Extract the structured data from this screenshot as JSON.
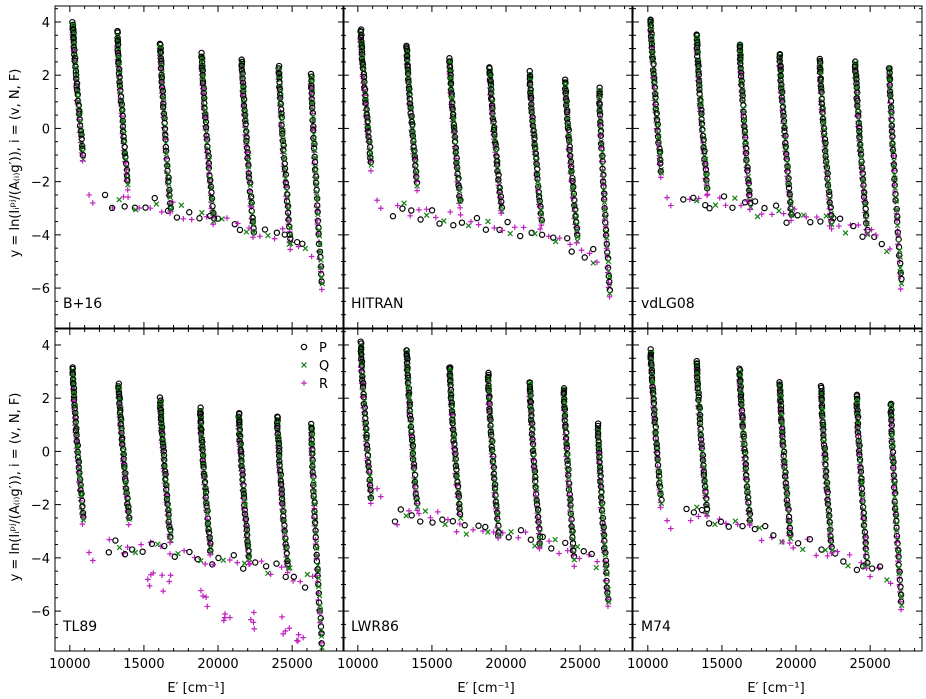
{
  "chart_data": {
    "type": "scatter",
    "layout": "2x3 grid, shared axes",
    "xlabel": "E′ [cm⁻¹]",
    "ylabel": "y = ln(Iᵢᵖʲ/(A₍ᵢ₎g′)),  i = (v, N, F)",
    "xlim": [
      9000,
      28500
    ],
    "ylim": [
      -7.5,
      4.6
    ],
    "xticks": [
      10000,
      15000,
      20000,
      25000
    ],
    "xtick_labels": [
      "10000",
      "15000",
      "20000",
      "25000"
    ],
    "yticks": [
      4,
      2,
      0,
      -2,
      -4,
      -6
    ],
    "ytick_labels": [
      "4",
      "2",
      "0",
      "−2",
      "−4",
      "−6"
    ],
    "series": [
      {
        "name": "P",
        "marker": "circle",
        "color": "#000000"
      },
      {
        "name": "Q",
        "marker": "x",
        "color": "#108010"
      },
      {
        "name": "R",
        "marker": "plus",
        "color": "#c020c0"
      }
    ],
    "panels": [
      {
        "label": "B+16",
        "bands": [
          {
            "x0": 10200,
            "dx": 700,
            "ytop": 4.0,
            "ybot": -1.0,
            "r_extra": -2.8
          },
          {
            "x0": 13200,
            "dx": 700,
            "ytop": 3.6,
            "ybot": -2.0
          },
          {
            "x0": 16100,
            "dx": 700,
            "ytop": 3.2,
            "ybot": -3.0
          },
          {
            "x0": 18900,
            "dx": 800,
            "ytop": 2.8,
            "ybot": -3.4
          },
          {
            "x0": 21600,
            "dx": 800,
            "ytop": 2.6,
            "ybot": -3.8
          },
          {
            "x0": 24100,
            "dx": 800,
            "ytop": 2.3,
            "ybot": -4.2
          },
          {
            "x0": 26300,
            "dx": 700,
            "ytop": 2.0,
            "ybot": -5.8
          }
        ],
        "floor": [
          [
            12500,
            -2.7
          ],
          [
            15000,
            -2.8
          ],
          [
            18000,
            -3.2
          ],
          [
            21000,
            -3.5
          ],
          [
            24000,
            -4.0
          ],
          [
            26500,
            -4.6
          ]
        ]
      },
      {
        "label": "HITRAN",
        "bands": [
          {
            "x0": 10200,
            "dx": 700,
            "ytop": 3.7,
            "ybot": -1.3,
            "r_extra": -3.0
          },
          {
            "x0": 13300,
            "dx": 700,
            "ytop": 3.1,
            "ybot": -2.0
          },
          {
            "x0": 16200,
            "dx": 700,
            "ytop": 2.6,
            "ybot": -2.7
          },
          {
            "x0": 18900,
            "dx": 800,
            "ytop": 2.3,
            "ybot": -3.0
          },
          {
            "x0": 21600,
            "dx": 800,
            "ytop": 2.1,
            "ybot": -3.4
          },
          {
            "x0": 24000,
            "dx": 800,
            "ytop": 1.8,
            "ybot": -4.0
          },
          {
            "x0": 26300,
            "dx": 700,
            "ytop": 1.5,
            "ybot": -6.1
          }
        ],
        "floor": [
          [
            12500,
            -3.0
          ],
          [
            15000,
            -3.3
          ],
          [
            18000,
            -3.6
          ],
          [
            21000,
            -3.8
          ],
          [
            24000,
            -4.2
          ],
          [
            26500,
            -5.0
          ]
        ]
      },
      {
        "label": "vdLG08",
        "bands": [
          {
            "x0": 10200,
            "dx": 700,
            "ytop": 4.1,
            "ybot": -1.6,
            "r_extra": -2.9
          },
          {
            "x0": 13300,
            "dx": 700,
            "ytop": 3.5,
            "ybot": -2.2
          },
          {
            "x0": 16200,
            "dx": 700,
            "ytop": 3.2,
            "ybot": -2.8
          },
          {
            "x0": 18900,
            "dx": 800,
            "ytop": 2.8,
            "ybot": -3.2
          },
          {
            "x0": 21600,
            "dx": 800,
            "ytop": 2.6,
            "ybot": -3.5
          },
          {
            "x0": 24000,
            "dx": 800,
            "ytop": 2.5,
            "ybot": -3.8
          },
          {
            "x0": 26300,
            "dx": 800,
            "ytop": 2.3,
            "ybot": -5.7
          }
        ],
        "floor": [
          [
            12500,
            -2.7
          ],
          [
            15000,
            -2.8
          ],
          [
            18000,
            -3.1
          ],
          [
            21000,
            -3.4
          ],
          [
            24000,
            -3.8
          ],
          [
            26500,
            -4.5
          ]
        ]
      },
      {
        "label": "TL89",
        "bands": [
          {
            "x0": 10200,
            "dx": 700,
            "ytop": 3.1,
            "ybot": -2.5,
            "r_extra": -4.1
          },
          {
            "x0": 13300,
            "dx": 700,
            "ytop": 2.5,
            "ybot": -2.5
          },
          {
            "x0": 16100,
            "dx": 700,
            "ytop": 2.0,
            "ybot": -3.2
          },
          {
            "x0": 18800,
            "dx": 700,
            "ytop": 1.6,
            "ybot": -3.7
          },
          {
            "x0": 21400,
            "dx": 700,
            "ytop": 1.4,
            "ybot": -4.0
          },
          {
            "x0": 24000,
            "dx": 700,
            "ytop": 1.3,
            "ybot": -4.3
          },
          {
            "x0": 26300,
            "dx": 700,
            "ytop": 1.0,
            "ybot": -7.2
          }
        ],
        "floor": [
          [
            12500,
            -3.6
          ],
          [
            15000,
            -3.6
          ],
          [
            18000,
            -3.9
          ],
          [
            21000,
            -4.2
          ],
          [
            24000,
            -4.4
          ],
          [
            26500,
            -5.0
          ]
        ],
        "r_scatter": [
          [
            15500,
            -4.8
          ],
          [
            16500,
            -5.0
          ],
          [
            19000,
            -5.5
          ],
          [
            20500,
            -6.0
          ],
          [
            22500,
            -6.3
          ],
          [
            24500,
            -6.5
          ],
          [
            25500,
            -7.0
          ]
        ]
      },
      {
        "label": "LWR86",
        "bands": [
          {
            "x0": 10200,
            "dx": 700,
            "ytop": 4.1,
            "ybot": -1.7,
            "r_extra": -1.7
          },
          {
            "x0": 13300,
            "dx": 700,
            "ytop": 3.8,
            "ybot": -2.0
          },
          {
            "x0": 16200,
            "dx": 700,
            "ytop": 3.2,
            "ybot": -2.4
          },
          {
            "x0": 18800,
            "dx": 700,
            "ytop": 2.9,
            "ybot": -3.0
          },
          {
            "x0": 21600,
            "dx": 700,
            "ytop": 2.6,
            "ybot": -3.4
          },
          {
            "x0": 23900,
            "dx": 700,
            "ytop": 2.4,
            "ybot": -4.0
          },
          {
            "x0": 26200,
            "dx": 700,
            "ytop": 1.0,
            "ybot": -5.6
          }
        ],
        "floor": [
          [
            12500,
            -2.5
          ],
          [
            15000,
            -2.4
          ],
          [
            18000,
            -3.0
          ],
          [
            21000,
            -3.2
          ],
          [
            24000,
            -3.7
          ],
          [
            26500,
            -4.3
          ]
        ]
      },
      {
        "label": "M74",
        "bands": [
          {
            "x0": 10200,
            "dx": 700,
            "ytop": 3.8,
            "ybot": -1.8,
            "r_extra": -2.9
          },
          {
            "x0": 13300,
            "dx": 700,
            "ytop": 3.4,
            "ybot": -2.2
          },
          {
            "x0": 16200,
            "dx": 700,
            "ytop": 3.1,
            "ybot": -2.6
          },
          {
            "x0": 18900,
            "dx": 700,
            "ytop": 2.6,
            "ybot": -3.1
          },
          {
            "x0": 21700,
            "dx": 700,
            "ytop": 2.4,
            "ybot": -3.6
          },
          {
            "x0": 24100,
            "dx": 700,
            "ytop": 2.1,
            "ybot": -4.2
          },
          {
            "x0": 26400,
            "dx": 700,
            "ytop": 1.8,
            "ybot": -5.7
          }
        ],
        "floor": [
          [
            12500,
            -2.3
          ],
          [
            15000,
            -2.6
          ],
          [
            18000,
            -3.1
          ],
          [
            21000,
            -3.6
          ],
          [
            24000,
            -4.2
          ],
          [
            26500,
            -4.8
          ]
        ]
      }
    ]
  },
  "legend": {
    "entries": [
      "P",
      "Q",
      "R"
    ],
    "placement": "upper right of TL89 panel"
  }
}
